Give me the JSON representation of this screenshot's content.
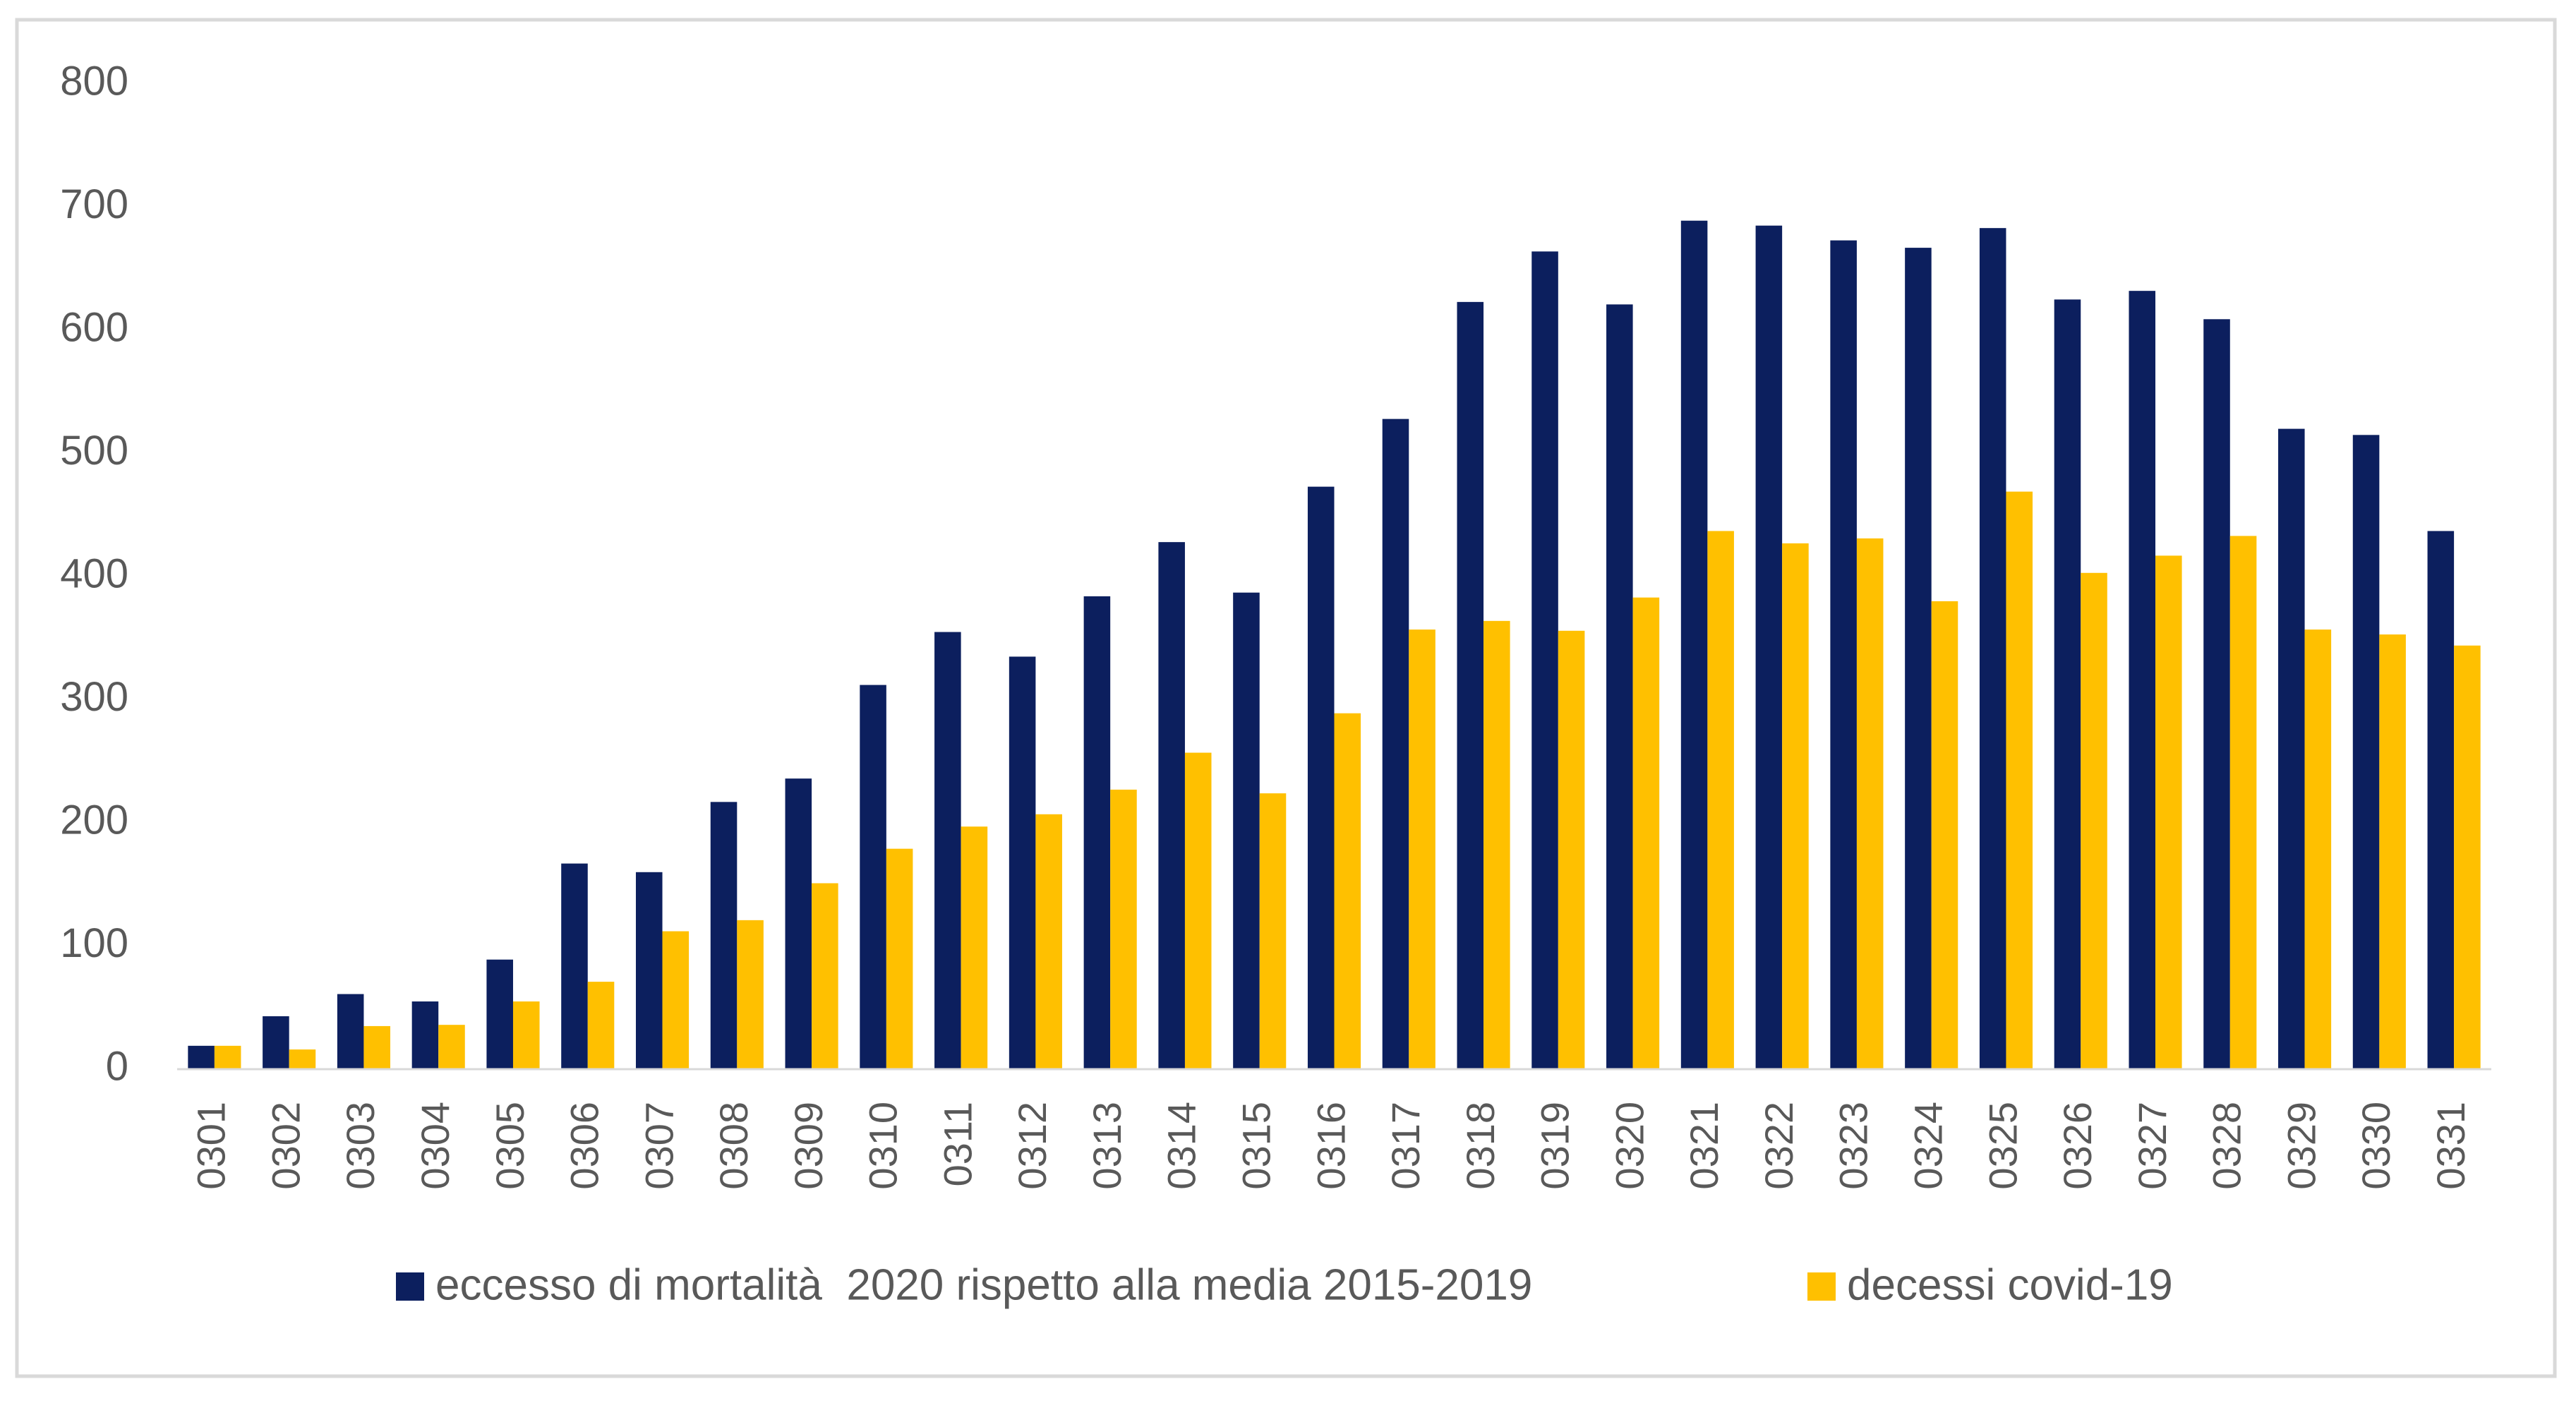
{
  "chart_data": {
    "type": "bar",
    "categories": [
      "0301",
      "0302",
      "0303",
      "0304",
      "0305",
      "0306",
      "0307",
      "0308",
      "0309",
      "0310",
      "0311",
      "0312",
      "0313",
      "0314",
      "0315",
      "0316",
      "0317",
      "0318",
      "0319",
      "0320",
      "0321",
      "0322",
      "0323",
      "0324",
      "0325",
      "0326",
      "0327",
      "0328",
      "0329",
      "0330",
      "0331"
    ],
    "series": [
      {
        "name": "eccesso di mortalità  2020 rispetto alla media 2015-2019",
        "color": "#0c1f5e",
        "values": [
          19,
          43,
          61,
          55,
          89,
          167,
          160,
          217,
          236,
          312,
          355,
          335,
          384,
          428,
          387,
          473,
          528,
          623,
          664,
          621,
          689,
          685,
          673,
          667,
          683,
          625,
          632,
          609,
          520,
          515,
          437
        ]
      },
      {
        "name": "decessi covid-19",
        "color": "#ffc000",
        "values": [
          19,
          16,
          35,
          36,
          55,
          71,
          112,
          121,
          151,
          179,
          197,
          207,
          227,
          257,
          224,
          289,
          357,
          364,
          356,
          383,
          437,
          427,
          431,
          380,
          469,
          403,
          417,
          433,
          357,
          353,
          344
        ]
      }
    ],
    "ylim": [
      0,
      800
    ],
    "yticks": [
      0,
      100,
      200,
      300,
      400,
      500,
      600,
      700,
      800
    ],
    "grid": false,
    "legend": "bottom"
  }
}
